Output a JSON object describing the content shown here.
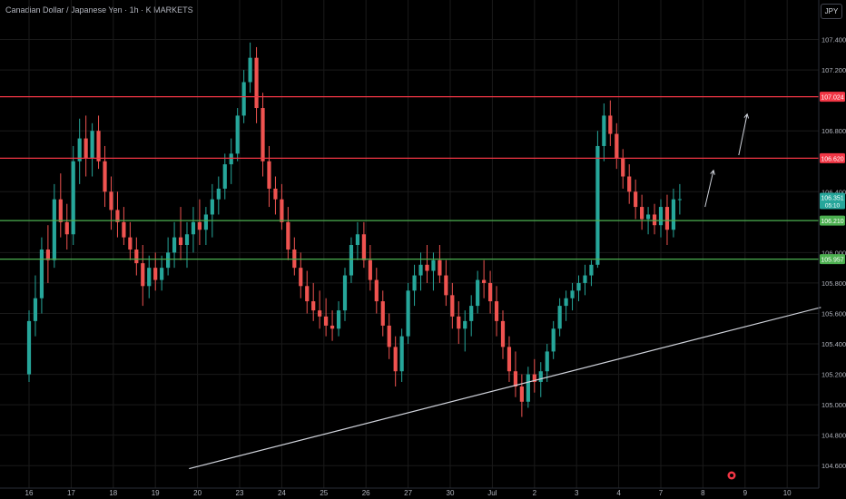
{
  "header": {
    "symbol_title": "Canadian Dollar / Japanese Yen · 1h · K MARKETS",
    "currency_button": "JPY"
  },
  "colors": {
    "background": "#000000",
    "up_candle": "#26a69a",
    "down_candle": "#ef5350",
    "resistance_line": "#f23645",
    "support_line": "#4caf50",
    "trendline": "#d1d4dc",
    "arrow": "#d1d4dc",
    "axis_text": "#b2b5be",
    "grid": "#1a1a1a"
  },
  "chart_data": {
    "type": "candlestick",
    "title": "Canadian Dollar / Japanese Yen · 1h · K MARKETS",
    "xlabel": "",
    "ylabel": "",
    "currency": "JPY",
    "ylim": [
      104.5,
      107.6
    ],
    "y_ticks": [
      "107.400",
      "107.200",
      "106.800",
      "106.400",
      "106.000",
      "105.800",
      "105.600",
      "105.400",
      "105.200",
      "105.000",
      "104.800",
      "104.600"
    ],
    "x_tick_labels": [
      "16",
      "17",
      "18",
      "19",
      "20",
      "23",
      "24",
      "25",
      "26",
      "27",
      "30",
      "Jul",
      "2",
      "3",
      "4",
      "7",
      "8",
      "9",
      "10"
    ],
    "x_ticks_index": [
      0,
      1,
      2,
      3,
      4,
      5,
      6,
      7,
      8,
      9,
      10,
      11,
      12,
      13,
      14,
      15,
      16,
      17,
      18
    ],
    "last_index": 15.45,
    "projection_end_index": 18.8,
    "horizontal_levels": [
      {
        "label": "107.024",
        "value": 107.024,
        "kind": "resistance"
      },
      {
        "label": "106.620",
        "value": 106.62,
        "kind": "resistance"
      },
      {
        "label": "106.210",
        "value": 106.21,
        "kind": "support"
      },
      {
        "label": "105.957",
        "value": 105.957,
        "kind": "support"
      }
    ],
    "current_price": {
      "value": 106.351,
      "label": "106.351",
      "countdown": "05:10"
    },
    "trendline": {
      "start": [
        3.8,
        104.58
      ],
      "end": [
        18.8,
        105.64
      ]
    },
    "arrows": [
      {
        "from": [
          16.05,
          106.3
        ],
        "to": [
          16.25,
          106.54
        ]
      },
      {
        "from": [
          16.85,
          106.64
        ],
        "to": [
          17.05,
          106.91
        ]
      }
    ],
    "series": [
      {
        "type": "ohlc",
        "points": [
          [
            0.0,
            105.2,
            105.62,
            105.15,
            105.55
          ],
          [
            0.15,
            105.55,
            105.85,
            105.45,
            105.7
          ],
          [
            0.3,
            105.7,
            106.1,
            105.6,
            106.02
          ],
          [
            0.45,
            106.02,
            106.18,
            105.8,
            105.95
          ],
          [
            0.6,
            105.95,
            106.45,
            105.9,
            106.35
          ],
          [
            0.75,
            106.35,
            106.52,
            106.1,
            106.2
          ],
          [
            0.9,
            106.2,
            106.32,
            106.02,
            106.12
          ],
          [
            1.05,
            106.12,
            106.7,
            106.05,
            106.6
          ],
          [
            1.2,
            106.6,
            106.88,
            106.45,
            106.75
          ],
          [
            1.35,
            106.75,
            106.9,
            106.5,
            106.62
          ],
          [
            1.5,
            106.62,
            106.85,
            106.5,
            106.8
          ],
          [
            1.65,
            106.8,
            106.9,
            106.55,
            106.6
          ],
          [
            1.8,
            106.6,
            106.7,
            106.3,
            106.4
          ],
          [
            1.95,
            106.4,
            106.5,
            106.15,
            106.28
          ],
          [
            2.1,
            106.28,
            106.4,
            106.1,
            106.2
          ],
          [
            2.25,
            106.2,
            106.3,
            106.05,
            106.1
          ],
          [
            2.4,
            106.1,
            106.2,
            105.95,
            106.02
          ],
          [
            2.55,
            106.02,
            106.1,
            105.85,
            105.93
          ],
          [
            2.7,
            105.93,
            106.05,
            105.65,
            105.78
          ],
          [
            2.85,
            105.78,
            105.98,
            105.7,
            105.9
          ],
          [
            3.0,
            105.9,
            106.0,
            105.75,
            105.82
          ],
          [
            3.15,
            105.82,
            105.98,
            105.75,
            105.9
          ],
          [
            3.3,
            105.9,
            106.1,
            105.85,
            106.0
          ],
          [
            3.45,
            106.0,
            106.2,
            105.9,
            106.1
          ],
          [
            3.6,
            106.1,
            106.3,
            105.95,
            106.05
          ],
          [
            3.75,
            106.05,
            106.2,
            105.9,
            106.12
          ],
          [
            3.9,
            106.12,
            106.3,
            106.0,
            106.2
          ],
          [
            4.05,
            106.2,
            106.35,
            106.05,
            106.15
          ],
          [
            4.2,
            106.15,
            106.3,
            106.05,
            106.25
          ],
          [
            4.35,
            106.25,
            106.45,
            106.1,
            106.35
          ],
          [
            4.5,
            106.35,
            106.5,
            106.25,
            106.42
          ],
          [
            4.65,
            106.42,
            106.65,
            106.35,
            106.58
          ],
          [
            4.8,
            106.58,
            106.75,
            106.45,
            106.65
          ],
          [
            4.95,
            106.65,
            106.95,
            106.6,
            106.9
          ],
          [
            5.1,
            106.9,
            107.2,
            106.85,
            107.12
          ],
          [
            5.25,
            107.12,
            107.38,
            107.05,
            107.28
          ],
          [
            5.4,
            107.28,
            107.35,
            106.85,
            106.95
          ],
          [
            5.55,
            106.95,
            107.05,
            106.5,
            106.6
          ],
          [
            5.7,
            106.6,
            106.7,
            106.3,
            106.42
          ],
          [
            5.85,
            106.42,
            106.5,
            106.25,
            106.35
          ],
          [
            6.0,
            106.35,
            106.45,
            106.15,
            106.2
          ],
          [
            6.15,
            106.2,
            106.3,
            105.95,
            106.02
          ],
          [
            6.3,
            106.02,
            106.1,
            105.85,
            105.9
          ],
          [
            6.45,
            105.9,
            106.0,
            105.7,
            105.78
          ],
          [
            6.6,
            105.78,
            105.88,
            105.6,
            105.68
          ],
          [
            6.75,
            105.68,
            105.8,
            105.55,
            105.62
          ],
          [
            6.9,
            105.62,
            105.75,
            105.5,
            105.58
          ],
          [
            7.05,
            105.58,
            105.7,
            105.45,
            105.52
          ],
          [
            7.2,
            105.52,
            105.62,
            105.42,
            105.5
          ],
          [
            7.35,
            105.5,
            105.68,
            105.45,
            105.62
          ],
          [
            7.5,
            105.62,
            105.9,
            105.55,
            105.85
          ],
          [
            7.65,
            105.85,
            106.1,
            105.8,
            106.05
          ],
          [
            7.8,
            106.05,
            106.2,
            105.95,
            106.12
          ],
          [
            7.95,
            106.12,
            106.2,
            105.9,
            105.95
          ],
          [
            8.1,
            105.95,
            106.05,
            105.75,
            105.82
          ],
          [
            8.25,
            105.82,
            105.9,
            105.6,
            105.68
          ],
          [
            8.4,
            105.68,
            105.75,
            105.45,
            105.52
          ],
          [
            8.55,
            105.52,
            105.6,
            105.3,
            105.38
          ],
          [
            8.7,
            105.38,
            105.45,
            105.12,
            105.22
          ],
          [
            8.85,
            105.22,
            105.5,
            105.15,
            105.45
          ],
          [
            9.0,
            105.45,
            105.8,
            105.4,
            105.75
          ],
          [
            9.15,
            105.75,
            105.92,
            105.65,
            105.85
          ],
          [
            9.3,
            105.85,
            106.0,
            105.75,
            105.92
          ],
          [
            9.45,
            105.92,
            106.05,
            105.8,
            105.88
          ],
          [
            9.6,
            105.88,
            106.0,
            105.75,
            105.95
          ],
          [
            9.75,
            105.95,
            106.05,
            105.8,
            105.85
          ],
          [
            9.9,
            105.85,
            105.95,
            105.65,
            105.72
          ],
          [
            10.05,
            105.72,
            105.8,
            105.5,
            105.58
          ],
          [
            10.2,
            105.58,
            105.68,
            105.4,
            105.5
          ],
          [
            10.35,
            105.5,
            105.62,
            105.35,
            105.55
          ],
          [
            10.5,
            105.55,
            105.72,
            105.45,
            105.65
          ],
          [
            10.65,
            105.65,
            105.88,
            105.6,
            105.82
          ],
          [
            10.8,
            105.82,
            105.95,
            105.7,
            105.8
          ],
          [
            10.95,
            105.8,
            105.88,
            105.6,
            105.68
          ],
          [
            11.1,
            105.68,
            105.78,
            105.45,
            105.55
          ],
          [
            11.25,
            105.55,
            105.62,
            105.3,
            105.38
          ],
          [
            11.4,
            105.38,
            105.45,
            105.15,
            105.22
          ],
          [
            11.55,
            105.22,
            105.35,
            105.05,
            105.12
          ],
          [
            11.7,
            105.12,
            105.2,
            104.92,
            105.02
          ],
          [
            11.85,
            105.02,
            105.25,
            104.98,
            105.2
          ],
          [
            12.0,
            105.2,
            105.3,
            105.08,
            105.15
          ],
          [
            12.15,
            105.15,
            105.28,
            105.05,
            105.22
          ],
          [
            12.3,
            105.22,
            105.4,
            105.15,
            105.35
          ],
          [
            12.45,
            105.35,
            105.55,
            105.3,
            105.5
          ],
          [
            12.6,
            105.5,
            105.7,
            105.45,
            105.65
          ],
          [
            12.75,
            105.65,
            105.75,
            105.55,
            105.7
          ],
          [
            12.9,
            105.7,
            105.8,
            105.62,
            105.75
          ],
          [
            13.05,
            105.75,
            105.85,
            105.68,
            105.8
          ],
          [
            13.2,
            105.8,
            105.92,
            105.72,
            105.85
          ],
          [
            13.35,
            105.85,
            105.95,
            105.78,
            105.92
          ],
          [
            13.5,
            105.92,
            106.8,
            105.9,
            106.7
          ],
          [
            13.65,
            106.7,
            106.98,
            106.6,
            106.9
          ],
          [
            13.8,
            106.9,
            107.0,
            106.7,
            106.78
          ],
          [
            13.95,
            106.78,
            106.85,
            106.55,
            106.62
          ],
          [
            14.1,
            106.62,
            106.68,
            106.42,
            106.5
          ],
          [
            14.25,
            106.5,
            106.58,
            106.32,
            106.4
          ],
          [
            14.4,
            106.4,
            106.48,
            106.22,
            106.3
          ],
          [
            14.55,
            106.3,
            106.38,
            106.15,
            106.22
          ],
          [
            14.7,
            106.22,
            106.3,
            106.12,
            106.25
          ],
          [
            14.85,
            106.25,
            106.32,
            106.12,
            106.18
          ],
          [
            15.0,
            106.18,
            106.35,
            106.1,
            106.3
          ],
          [
            15.15,
            106.3,
            106.38,
            106.05,
            106.15
          ],
          [
            15.3,
            106.15,
            106.42,
            106.1,
            106.35
          ],
          [
            15.45,
            106.35,
            106.45,
            106.25,
            106.351
          ]
        ]
      }
    ]
  }
}
